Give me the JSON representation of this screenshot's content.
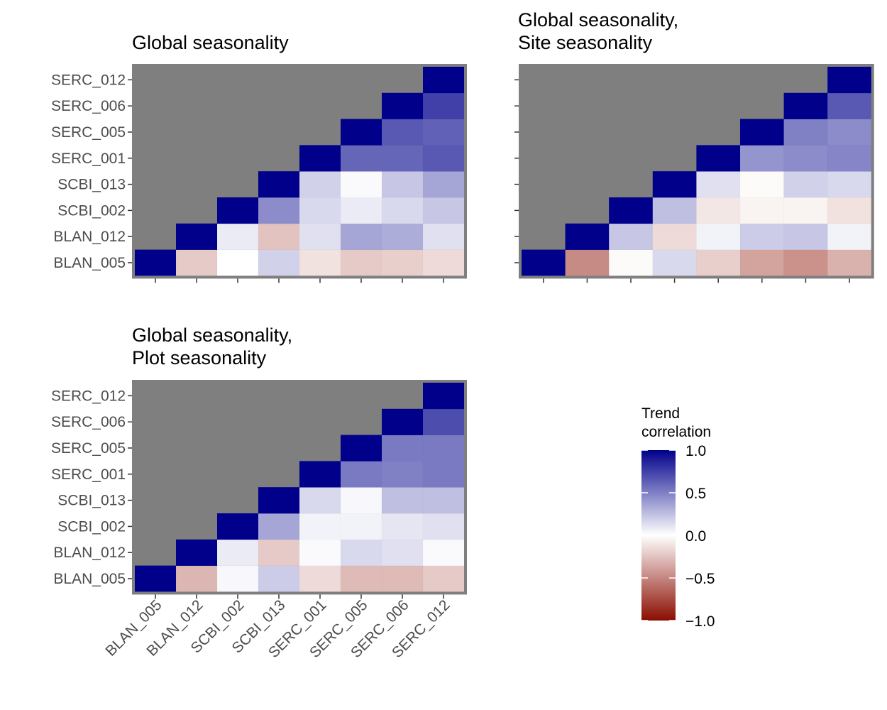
{
  "chart_data": [
    {
      "type": "heatmap",
      "title": "Global seasonality",
      "x": [
        "BLAN_005",
        "BLAN_012",
        "SCBI_002",
        "SCBI_013",
        "SERC_001",
        "SERC_005",
        "SERC_006",
        "SERC_012"
      ],
      "y": [
        "BLAN_005",
        "BLAN_012",
        "SCBI_002",
        "SCBI_013",
        "SERC_001",
        "SERC_005",
        "SERC_006",
        "SERC_012"
      ],
      "x_tick_labels_shown": false,
      "values": [
        [
          1.0,
          -0.22,
          0.0,
          0.18,
          -0.12,
          -0.22,
          -0.2,
          -0.15
        ],
        [
          null,
          1.0,
          0.08,
          -0.25,
          0.12,
          0.35,
          0.32,
          0.12
        ],
        [
          null,
          null,
          1.0,
          0.45,
          0.15,
          0.08,
          0.15,
          0.22
        ],
        [
          null,
          null,
          null,
          1.0,
          0.18,
          0.02,
          0.22,
          0.35
        ],
        [
          null,
          null,
          null,
          null,
          1.0,
          0.6,
          0.6,
          0.65
        ],
        [
          null,
          null,
          null,
          null,
          null,
          1.0,
          0.65,
          0.62
        ],
        [
          null,
          null,
          null,
          null,
          null,
          null,
          1.0,
          0.75
        ],
        [
          null,
          null,
          null,
          null,
          null,
          null,
          null,
          1.0
        ]
      ]
    },
    {
      "type": "heatmap",
      "title": "Global seasonality,\nSite seasonality",
      "x": [
        "BLAN_005",
        "BLAN_012",
        "SCBI_002",
        "SCBI_013",
        "SERC_001",
        "SERC_005",
        "SERC_006",
        "SERC_012"
      ],
      "y": [
        "BLAN_005",
        "BLAN_012",
        "SCBI_002",
        "SCBI_013",
        "SERC_001",
        "SERC_005",
        "SERC_006",
        "SERC_012"
      ],
      "x_tick_labels_shown": false,
      "y_tick_labels_shown": false,
      "values": [
        [
          1.0,
          -0.48,
          -0.02,
          0.15,
          -0.2,
          -0.38,
          -0.45,
          -0.32
        ],
        [
          null,
          1.0,
          0.22,
          -0.15,
          0.05,
          0.2,
          0.22,
          0.05
        ],
        [
          null,
          null,
          1.0,
          0.25,
          -0.1,
          -0.05,
          -0.05,
          -0.12
        ],
        [
          null,
          null,
          null,
          1.0,
          0.12,
          -0.02,
          0.18,
          0.15
        ],
        [
          null,
          null,
          null,
          null,
          1.0,
          0.42,
          0.45,
          0.48
        ],
        [
          null,
          null,
          null,
          null,
          null,
          1.0,
          0.5,
          0.45
        ],
        [
          null,
          null,
          null,
          null,
          null,
          null,
          1.0,
          0.65
        ],
        [
          null,
          null,
          null,
          null,
          null,
          null,
          null,
          1.0
        ]
      ]
    },
    {
      "type": "heatmap",
      "title": "Global seasonality,\nPlot seasonality",
      "x": [
        "BLAN_005",
        "BLAN_012",
        "SCBI_002",
        "SCBI_013",
        "SERC_001",
        "SERC_005",
        "SERC_006",
        "SERC_012"
      ],
      "y": [
        "BLAN_005",
        "BLAN_012",
        "SCBI_002",
        "SCBI_013",
        "SERC_001",
        "SERC_005",
        "SERC_006",
        "SERC_012"
      ],
      "values": [
        [
          1.0,
          -0.3,
          0.03,
          0.2,
          -0.15,
          -0.28,
          -0.28,
          -0.22
        ],
        [
          null,
          1.0,
          0.08,
          -0.22,
          0.02,
          0.15,
          0.12,
          0.02
        ],
        [
          null,
          null,
          1.0,
          0.35,
          0.05,
          0.05,
          0.1,
          0.12
        ],
        [
          null,
          null,
          null,
          1.0,
          0.15,
          0.03,
          0.25,
          0.25
        ],
        [
          null,
          null,
          null,
          null,
          1.0,
          0.52,
          0.5,
          0.52
        ],
        [
          null,
          null,
          null,
          null,
          null,
          1.0,
          0.52,
          0.52
        ],
        [
          null,
          null,
          null,
          null,
          null,
          null,
          1.0,
          0.7
        ],
        [
          null,
          null,
          null,
          null,
          null,
          null,
          null,
          1.0
        ]
      ]
    }
  ],
  "legend": {
    "title_line1": "Trend",
    "title_line2": "correlation",
    "breaks": [
      1.0,
      0.5,
      0.0,
      -0.5,
      -1.0
    ],
    "labels": [
      "1.0",
      "0.5",
      "0.0",
      "−0.5",
      "−1.0"
    ],
    "limits": [
      -1.0,
      1.0
    ]
  },
  "colors": {
    "low": "#8b0d00",
    "mid": "#ffffff",
    "high": "#00008b",
    "na_fill": "#7f7f7f",
    "panel_border": "#7f7f7f",
    "tick_text": "#4d4d4d",
    "tick_mark": "#333333"
  }
}
